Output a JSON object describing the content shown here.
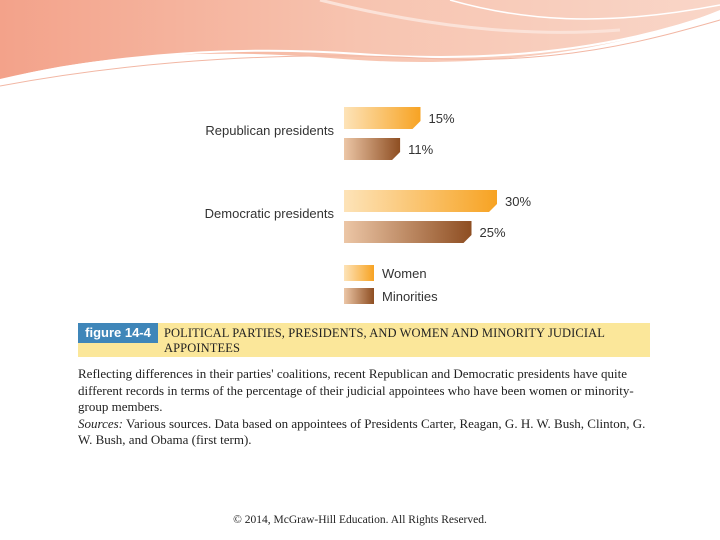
{
  "figure": {
    "tag": "figure 14-4",
    "title": "POLITICAL PARTIES, PRESIDENTS, AND WOMEN AND MINORITY JUDICIAL APPOINTEES",
    "caption": "Reflecting differences in their parties' coalitions, recent Republican and Democratic presidents have quite different records in terms of the percentage of their judicial appointees who have been women or minority-group members.",
    "sources_label": "Sources:",
    "sources_text": " Various sources. Data based on appointees of Presidents Carter, Reagan, G. H. W. Bush, Clinton, G. W. Bush, and Obama (first term)."
  },
  "footer": {
    "copyright": "© 2014, McGraw-Hill Education. All Rights Reserved."
  },
  "chart_data": {
    "type": "bar",
    "orientation": "horizontal",
    "categories": [
      "Republican presidents",
      "Democratic presidents"
    ],
    "series": [
      {
        "name": "Women",
        "values": [
          15,
          30
        ],
        "labels": [
          "15%",
          "30%"
        ],
        "color": "#f7ab2f"
      },
      {
        "name": "Minorities",
        "values": [
          11,
          25
        ],
        "labels": [
          "11%",
          "25%"
        ],
        "color": "#9b5a2c"
      }
    ],
    "xlim": [
      0,
      30
    ],
    "grid": false,
    "legend": "bottom"
  }
}
